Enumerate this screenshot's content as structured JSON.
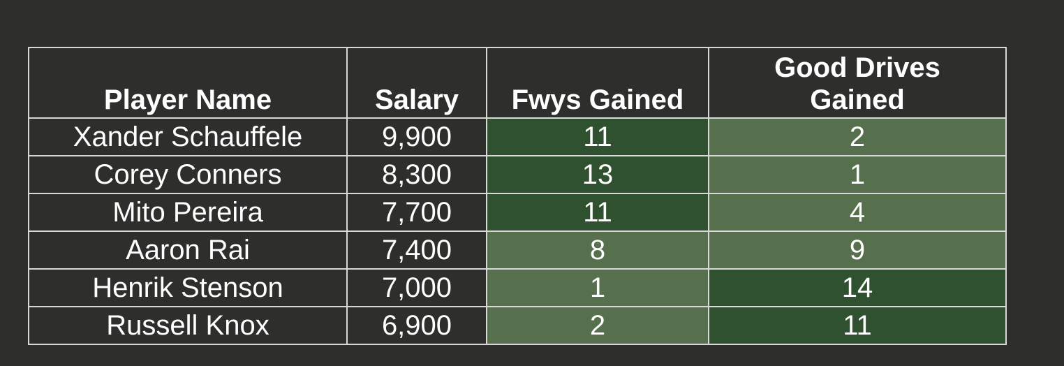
{
  "chart_data": {
    "type": "table",
    "columns": [
      "Player Name",
      "Salary",
      "Fwys Gained",
      "Good Drives Gained"
    ],
    "rows": [
      {
        "player": "Xander Schauffele",
        "salary": "9,900",
        "fwys_gained": 11,
        "good_drives_gained": 2
      },
      {
        "player": "Corey Conners",
        "salary": "8,300",
        "fwys_gained": 13,
        "good_drives_gained": 1
      },
      {
        "player": "Mito Pereira",
        "salary": "7,700",
        "fwys_gained": 11,
        "good_drives_gained": 4
      },
      {
        "player": "Aaron Rai",
        "salary": "7,400",
        "fwys_gained": 8,
        "good_drives_gained": 9
      },
      {
        "player": "Henrik Stenson",
        "salary": "7,000",
        "fwys_gained": 1,
        "good_drives_gained": 14
      },
      {
        "player": "Russell Knox",
        "salary": "6,900",
        "fwys_gained": 2,
        "good_drives_gained": 11
      }
    ]
  },
  "colors": {
    "background": "#2e2f2c",
    "border": "#d8d8d8",
    "high_value": "#30512f",
    "low_value": "#566f4d",
    "text": "#ffffff"
  }
}
